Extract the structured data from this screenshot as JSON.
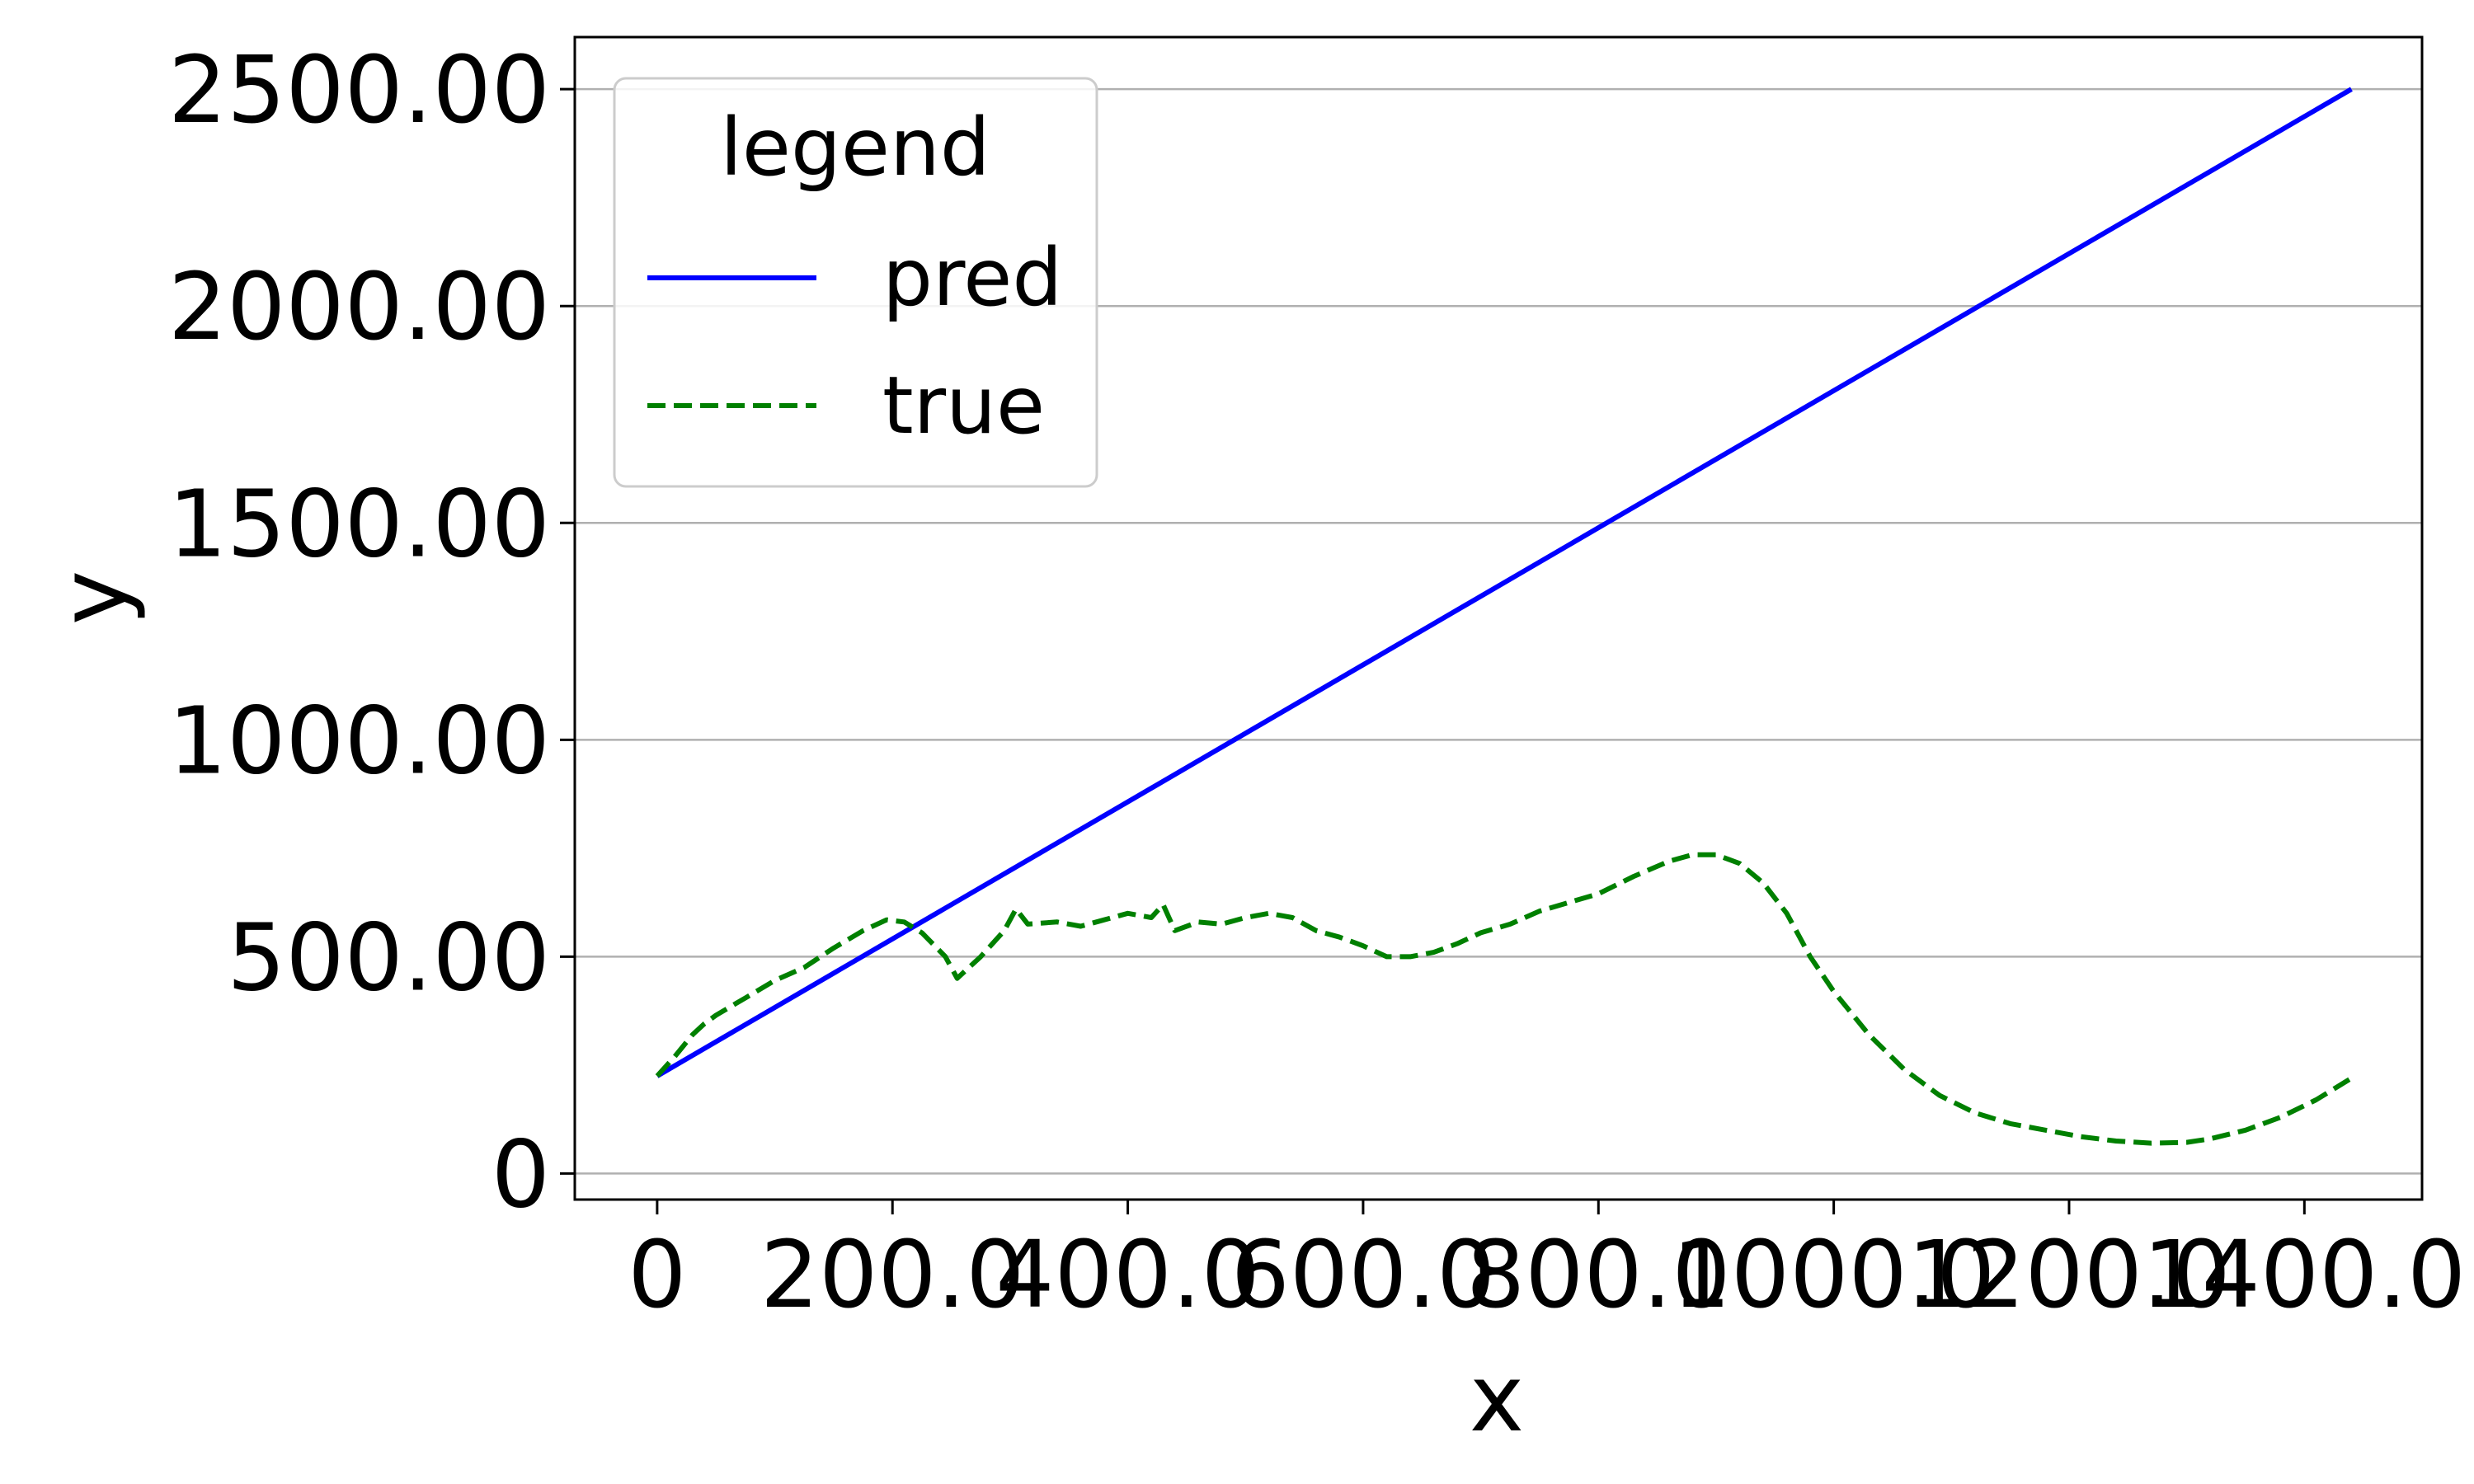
{
  "chart_data": {
    "type": "line",
    "xlabel": "x",
    "ylabel": "y",
    "xlim": [
      -70,
      1500
    ],
    "ylim": [
      -60,
      2620
    ],
    "grid": "horizontal",
    "legend": {
      "title": "legend",
      "placement": "upper-left"
    },
    "x_ticks": [
      {
        "value": 0,
        "label": "0"
      },
      {
        "value": 200,
        "label": "200.0"
      },
      {
        "value": 400,
        "label": "400.0"
      },
      {
        "value": 600,
        "label": "600.0"
      },
      {
        "value": 800,
        "label": "800.0"
      },
      {
        "value": 1000,
        "label": "1000.0"
      },
      {
        "value": 1200,
        "label": "1200.0"
      },
      {
        "value": 1400,
        "label": "1400.0"
      }
    ],
    "y_ticks": [
      {
        "value": 0,
        "label": "0"
      },
      {
        "value": 500,
        "label": "500.00"
      },
      {
        "value": 1000,
        "label": "1000.00"
      },
      {
        "value": 1500,
        "label": "1500.00"
      },
      {
        "value": 2000,
        "label": "2000.00"
      },
      {
        "value": 2500,
        "label": "2500.00"
      }
    ],
    "series": [
      {
        "name": "pred",
        "color": "#0000ff",
        "style": "solid",
        "points": [
          [
            0,
            225
          ],
          [
            1440,
            2500
          ]
        ]
      },
      {
        "name": "true",
        "color": "#008000",
        "style": "dashed",
        "points": [
          [
            0,
            225
          ],
          [
            15,
            270
          ],
          [
            30,
            320
          ],
          [
            40,
            345
          ],
          [
            50,
            365
          ],
          [
            75,
            405
          ],
          [
            100,
            445
          ],
          [
            125,
            475
          ],
          [
            150,
            520
          ],
          [
            175,
            560
          ],
          [
            195,
            585
          ],
          [
            210,
            580
          ],
          [
            225,
            555
          ],
          [
            245,
            500
          ],
          [
            255,
            450
          ],
          [
            275,
            500
          ],
          [
            295,
            560
          ],
          [
            305,
            610
          ],
          [
            315,
            575
          ],
          [
            340,
            580
          ],
          [
            360,
            570
          ],
          [
            380,
            585
          ],
          [
            400,
            600
          ],
          [
            420,
            590
          ],
          [
            430,
            620
          ],
          [
            440,
            560
          ],
          [
            460,
            580
          ],
          [
            480,
            575
          ],
          [
            500,
            590
          ],
          [
            520,
            600
          ],
          [
            540,
            590
          ],
          [
            560,
            560
          ],
          [
            580,
            545
          ],
          [
            600,
            525
          ],
          [
            620,
            500
          ],
          [
            640,
            500
          ],
          [
            660,
            510
          ],
          [
            680,
            530
          ],
          [
            700,
            555
          ],
          [
            725,
            575
          ],
          [
            750,
            605
          ],
          [
            775,
            625
          ],
          [
            800,
            645
          ],
          [
            830,
            685
          ],
          [
            860,
            720
          ],
          [
            880,
            735
          ],
          [
            900,
            735
          ],
          [
            920,
            715
          ],
          [
            940,
            670
          ],
          [
            960,
            600
          ],
          [
            980,
            500
          ],
          [
            1000,
            420
          ],
          [
            1030,
            320
          ],
          [
            1060,
            240
          ],
          [
            1090,
            180
          ],
          [
            1120,
            140
          ],
          [
            1150,
            115
          ],
          [
            1180,
            100
          ],
          [
            1210,
            85
          ],
          [
            1240,
            75
          ],
          [
            1270,
            70
          ],
          [
            1300,
            72
          ],
          [
            1320,
            80
          ],
          [
            1350,
            100
          ],
          [
            1380,
            130
          ],
          [
            1410,
            170
          ],
          [
            1440,
            220
          ]
        ]
      }
    ]
  }
}
